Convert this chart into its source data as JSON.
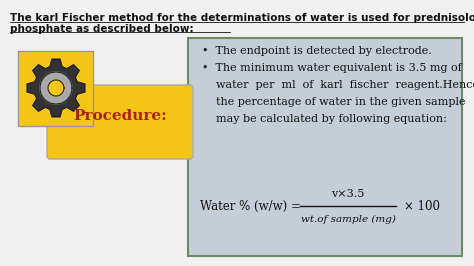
{
  "bg_color": "#f0f0f0",
  "header_text_line1": "The karl Fischer method for the determinations of water is used for prednisolone sodium",
  "header_text_line2": "phosphate as described below:",
  "header_fontsize": 7.5,
  "header_color": "#111111",
  "box_bg_color": "#c5cdd6",
  "box_edge_color": "#6a8a6a",
  "gear_box_color": "#f5c518",
  "gear_box_edge_color": "#888888",
  "procedure_color": "#aa2200",
  "procedure_text": "Procedure:",
  "procedure_fontsize": 11,
  "bullet1": "The endpoint is detected by electrode.",
  "bullet2_l1": "The minimum water equivalent is 3.5 mg of",
  "bullet2_l2": "water  per  ml  of  karl  fischer  reagent.Hence",
  "bullet2_l3": "the percentage of water in the given sample",
  "bullet2_l4": "may be calculated by following equation:",
  "bullet_fontsize": 8.0,
  "formula_lhs": "Water % (w/w) =",
  "formula_num": "v×3.5",
  "formula_den": "wt.of sample (mg)",
  "formula_rhs": "× 100",
  "formula_fontsize": 8.5,
  "formula_den_fontsize": 7.5,
  "gear_color": "#333333",
  "gear_hole_color": "#f5c518",
  "text_color": "#111111"
}
